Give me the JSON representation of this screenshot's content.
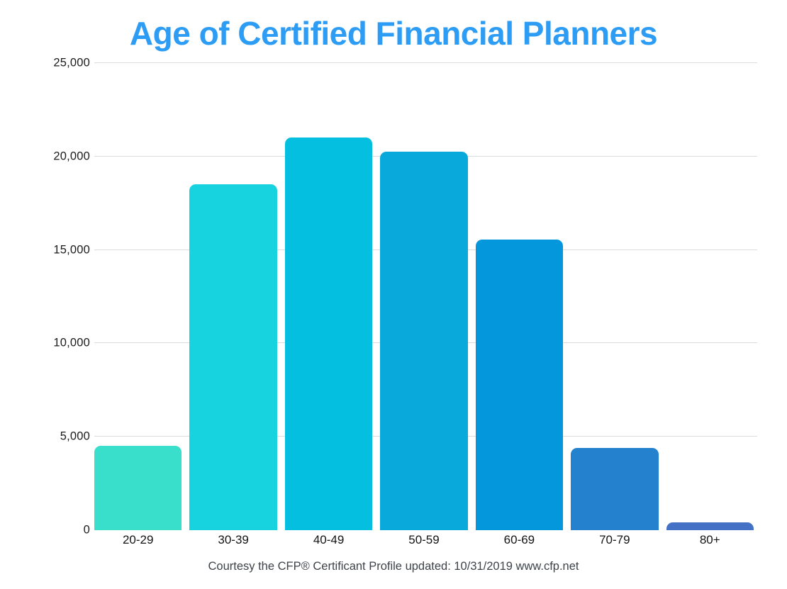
{
  "chart_data": {
    "type": "bar",
    "title": "Age of Certified Financial Planners",
    "title_color": "#2D9CF4",
    "categories": [
      "20-29",
      "30-39",
      "40-49",
      "50-59",
      "60-69",
      "70-79",
      "80+"
    ],
    "values": [
      4500,
      18500,
      21000,
      20250,
      15550,
      4400,
      400
    ],
    "bar_colors": [
      "#3ADFCB",
      "#17D2DF",
      "#04BFDF",
      "#09A9DC",
      "#0597DB",
      "#2381CE",
      "#4470C5"
    ],
    "xlabel": "",
    "ylabel": "",
    "ylim": [
      0,
      25000
    ],
    "ytick_step": 5000,
    "ytick_labels": [
      "0",
      "5,000",
      "10,000",
      "15,000",
      "20,000",
      "25,000"
    ],
    "grid": "horizontal-only",
    "gridline_color": "#D9DCDC",
    "legend": "none",
    "footer": "Courtesy the CFP® Certificant Profile updated: 10/31/2019 www.cfp.net"
  }
}
